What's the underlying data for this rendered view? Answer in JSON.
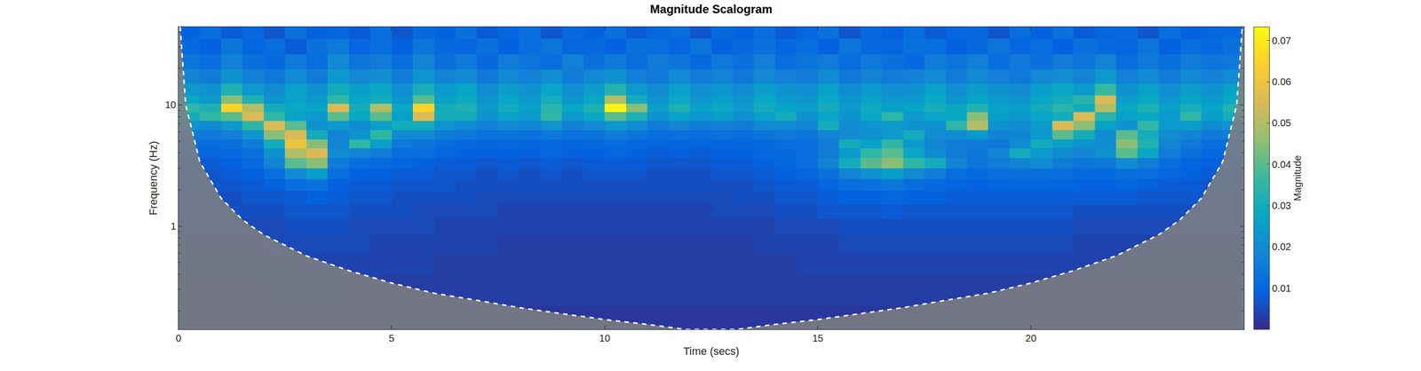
{
  "chart_data": {
    "type": "heatmap",
    "title": "Magnitude Scalogram",
    "x_label": "Time (secs)",
    "y_label": "Frequency (Hz)",
    "colorbar_label": "Magnitude",
    "log": "y",
    "xlim": [
      0,
      25
    ],
    "xticks": [
      0,
      5,
      10,
      15,
      20
    ],
    "ylim": [
      0.141,
      43.9
    ],
    "yticks": [
      1,
      10
    ],
    "zlim": [
      0,
      0.0733
    ],
    "zticks": [
      0.01,
      0.02,
      0.03,
      0.04,
      0.05,
      0.06,
      0.07
    ],
    "x": [
      0.25,
      0.75,
      1.25,
      1.75,
      2.25,
      2.75,
      3.25,
      3.75,
      4.25,
      4.75,
      5.25,
      5.75,
      6.25,
      6.75,
      7.25,
      7.75,
      8.25,
      8.75,
      9.25,
      9.75,
      10.25,
      10.75,
      11.25,
      11.75,
      12.25,
      12.75,
      13.25,
      13.75,
      14.25,
      14.75,
      15.25,
      15.75,
      16.25,
      16.75,
      17.25,
      17.75,
      18.25,
      18.75,
      19.25,
      19.75,
      20.25,
      20.75,
      21.25,
      21.75,
      22.25,
      22.75,
      23.25,
      23.75,
      24.25,
      24.75
    ],
    "y_edges": [
      0.141,
      0.22,
      0.4,
      0.6,
      0.85,
      1.15,
      1.5,
      1.95,
      2.45,
      3.0,
      3.65,
      4.4,
      5.2,
      6.2,
      7.4,
      8.7,
      10.2,
      12,
      15,
      19.5,
      26,
      35,
      43.9
    ],
    "z": [
      [
        0.003,
        0.003,
        0.003,
        0.003,
        0.003,
        0.003,
        0.003,
        0.003,
        0.003,
        0.003,
        0.002,
        0.002,
        0.002,
        0.002,
        0.002,
        0.002,
        0.002,
        0.002,
        0.002,
        0.002,
        0.002,
        0.002,
        0.002,
        0.002,
        0.002,
        0.002,
        0.002,
        0.002,
        0.002,
        0.002,
        0.002,
        0.002,
        0.002,
        0.002,
        0.002,
        0.002,
        0.002,
        0.002,
        0.002,
        0.002,
        0.003,
        0.003,
        0.003,
        0.003,
        0.003,
        0.003,
        0.003,
        0.003,
        0.003,
        0.003
      ],
      [
        0.003,
        0.003,
        0.003,
        0.003,
        0.004,
        0.004,
        0.004,
        0.004,
        0.003,
        0.003,
        0.003,
        0.003,
        0.003,
        0.003,
        0.003,
        0.003,
        0.003,
        0.003,
        0.003,
        0.003,
        0.003,
        0.003,
        0.003,
        0.003,
        0.003,
        0.003,
        0.003,
        0.003,
        0.003,
        0.003,
        0.003,
        0.003,
        0.003,
        0.003,
        0.003,
        0.003,
        0.003,
        0.003,
        0.003,
        0.003,
        0.003,
        0.003,
        0.003,
        0.003,
        0.003,
        0.003,
        0.003,
        0.003,
        0.003,
        0.003
      ],
      [
        0.004,
        0.004,
        0.004,
        0.004,
        0.004,
        0.004,
        0.004,
        0.004,
        0.004,
        0.004,
        0.004,
        0.004,
        0.003,
        0.003,
        0.003,
        0.003,
        0.003,
        0.003,
        0.003,
        0.003,
        0.003,
        0.003,
        0.003,
        0.003,
        0.003,
        0.003,
        0.003,
        0.003,
        0.003,
        0.004,
        0.004,
        0.004,
        0.004,
        0.004,
        0.004,
        0.004,
        0.004,
        0.004,
        0.004,
        0.004,
        0.004,
        0.004,
        0.004,
        0.004,
        0.004,
        0.004,
        0.004,
        0.004,
        0.004,
        0.004
      ],
      [
        0.004,
        0.004,
        0.004,
        0.004,
        0.005,
        0.005,
        0.005,
        0.005,
        0.005,
        0.004,
        0.004,
        0.004,
        0.004,
        0.004,
        0.004,
        0.003,
        0.003,
        0.003,
        0.003,
        0.003,
        0.003,
        0.003,
        0.003,
        0.003,
        0.003,
        0.003,
        0.003,
        0.004,
        0.004,
        0.004,
        0.004,
        0.005,
        0.005,
        0.005,
        0.005,
        0.005,
        0.005,
        0.005,
        0.005,
        0.005,
        0.005,
        0.005,
        0.004,
        0.004,
        0.004,
        0.004,
        0.004,
        0.004,
        0.004,
        0.004
      ],
      [
        0.005,
        0.005,
        0.005,
        0.005,
        0.005,
        0.006,
        0.006,
        0.006,
        0.005,
        0.005,
        0.005,
        0.005,
        0.004,
        0.004,
        0.004,
        0.004,
        0.004,
        0.004,
        0.004,
        0.004,
        0.004,
        0.004,
        0.004,
        0.004,
        0.004,
        0.004,
        0.004,
        0.004,
        0.005,
        0.005,
        0.005,
        0.006,
        0.006,
        0.006,
        0.006,
        0.006,
        0.006,
        0.006,
        0.006,
        0.006,
        0.006,
        0.006,
        0.005,
        0.005,
        0.005,
        0.005,
        0.005,
        0.005,
        0.005,
        0.005
      ],
      [
        0.005,
        0.005,
        0.006,
        0.006,
        0.006,
        0.007,
        0.007,
        0.007,
        0.006,
        0.006,
        0.006,
        0.005,
        0.005,
        0.005,
        0.005,
        0.004,
        0.004,
        0.004,
        0.004,
        0.004,
        0.004,
        0.004,
        0.004,
        0.004,
        0.004,
        0.005,
        0.005,
        0.005,
        0.006,
        0.006,
        0.007,
        0.007,
        0.007,
        0.008,
        0.007,
        0.007,
        0.007,
        0.007,
        0.007,
        0.007,
        0.007,
        0.007,
        0.006,
        0.006,
        0.006,
        0.006,
        0.006,
        0.006,
        0.005,
        0.005
      ],
      [
        0.006,
        0.006,
        0.006,
        0.007,
        0.007,
        0.008,
        0.009,
        0.008,
        0.007,
        0.007,
        0.006,
        0.006,
        0.006,
        0.006,
        0.005,
        0.005,
        0.005,
        0.005,
        0.005,
        0.005,
        0.005,
        0.005,
        0.005,
        0.005,
        0.005,
        0.005,
        0.006,
        0.006,
        0.007,
        0.007,
        0.008,
        0.009,
        0.009,
        0.01,
        0.009,
        0.009,
        0.008,
        0.008,
        0.008,
        0.008,
        0.008,
        0.008,
        0.008,
        0.008,
        0.008,
        0.007,
        0.007,
        0.007,
        0.006,
        0.006
      ],
      [
        0.007,
        0.007,
        0.007,
        0.008,
        0.009,
        0.012,
        0.013,
        0.009,
        0.008,
        0.008,
        0.007,
        0.007,
        0.007,
        0.006,
        0.006,
        0.006,
        0.006,
        0.006,
        0.006,
        0.006,
        0.006,
        0.006,
        0.006,
        0.006,
        0.006,
        0.006,
        0.006,
        0.007,
        0.008,
        0.008,
        0.01,
        0.012,
        0.013,
        0.014,
        0.012,
        0.011,
        0.01,
        0.009,
        0.01,
        0.01,
        0.01,
        0.01,
        0.009,
        0.009,
        0.01,
        0.009,
        0.008,
        0.008,
        0.007,
        0.007
      ],
      [
        0.007,
        0.007,
        0.008,
        0.009,
        0.012,
        0.02,
        0.025,
        0.012,
        0.009,
        0.009,
        0.008,
        0.008,
        0.007,
        0.007,
        0.006,
        0.007,
        0.006,
        0.007,
        0.006,
        0.007,
        0.007,
        0.007,
        0.006,
        0.006,
        0.006,
        0.007,
        0.007,
        0.008,
        0.009,
        0.01,
        0.013,
        0.018,
        0.022,
        0.025,
        0.02,
        0.016,
        0.012,
        0.011,
        0.012,
        0.013,
        0.013,
        0.012,
        0.011,
        0.011,
        0.013,
        0.012,
        0.01,
        0.009,
        0.008,
        0.007
      ],
      [
        0.008,
        0.008,
        0.009,
        0.011,
        0.018,
        0.04,
        0.045,
        0.016,
        0.012,
        0.011,
        0.01,
        0.009,
        0.008,
        0.008,
        0.007,
        0.008,
        0.007,
        0.008,
        0.007,
        0.008,
        0.008,
        0.008,
        0.007,
        0.007,
        0.007,
        0.008,
        0.008,
        0.009,
        0.01,
        0.012,
        0.018,
        0.03,
        0.04,
        0.045,
        0.035,
        0.03,
        0.018,
        0.014,
        0.016,
        0.018,
        0.02,
        0.016,
        0.014,
        0.015,
        0.02,
        0.016,
        0.012,
        0.01,
        0.009,
        0.008
      ],
      [
        0.01,
        0.01,
        0.011,
        0.013,
        0.022,
        0.05,
        0.055,
        0.02,
        0.018,
        0.016,
        0.012,
        0.012,
        0.01,
        0.009,
        0.009,
        0.009,
        0.009,
        0.01,
        0.009,
        0.009,
        0.01,
        0.009,
        0.008,
        0.009,
        0.008,
        0.009,
        0.009,
        0.01,
        0.011,
        0.012,
        0.016,
        0.024,
        0.035,
        0.04,
        0.028,
        0.02,
        0.016,
        0.014,
        0.018,
        0.03,
        0.024,
        0.02,
        0.018,
        0.022,
        0.04,
        0.028,
        0.016,
        0.013,
        0.011,
        0.01
      ],
      [
        0.012,
        0.012,
        0.013,
        0.016,
        0.03,
        0.06,
        0.045,
        0.018,
        0.035,
        0.025,
        0.015,
        0.014,
        0.012,
        0.011,
        0.01,
        0.011,
        0.01,
        0.011,
        0.01,
        0.011,
        0.012,
        0.011,
        0.01,
        0.01,
        0.01,
        0.01,
        0.01,
        0.011,
        0.012,
        0.012,
        0.016,
        0.03,
        0.026,
        0.035,
        0.024,
        0.018,
        0.016,
        0.016,
        0.015,
        0.02,
        0.03,
        0.025,
        0.022,
        0.02,
        0.045,
        0.032,
        0.018,
        0.015,
        0.012,
        0.012
      ],
      [
        0.016,
        0.015,
        0.017,
        0.022,
        0.045,
        0.055,
        0.03,
        0.018,
        0.022,
        0.035,
        0.02,
        0.02,
        0.016,
        0.015,
        0.013,
        0.014,
        0.013,
        0.015,
        0.013,
        0.014,
        0.016,
        0.014,
        0.012,
        0.013,
        0.012,
        0.013,
        0.012,
        0.014,
        0.015,
        0.014,
        0.018,
        0.02,
        0.022,
        0.024,
        0.03,
        0.02,
        0.02,
        0.024,
        0.018,
        0.018,
        0.024,
        0.04,
        0.03,
        0.02,
        0.04,
        0.03,
        0.02,
        0.018,
        0.015,
        0.016
      ],
      [
        0.022,
        0.02,
        0.024,
        0.035,
        0.055,
        0.04,
        0.022,
        0.024,
        0.02,
        0.026,
        0.03,
        0.03,
        0.022,
        0.02,
        0.017,
        0.019,
        0.018,
        0.022,
        0.017,
        0.019,
        0.024,
        0.02,
        0.016,
        0.018,
        0.016,
        0.017,
        0.016,
        0.019,
        0.02,
        0.018,
        0.03,
        0.02,
        0.022,
        0.024,
        0.022,
        0.021,
        0.035,
        0.05,
        0.022,
        0.02,
        0.024,
        0.055,
        0.045,
        0.026,
        0.022,
        0.035,
        0.024,
        0.025,
        0.02,
        0.022
      ],
      [
        0.03,
        0.035,
        0.04,
        0.055,
        0.035,
        0.026,
        0.024,
        0.04,
        0.028,
        0.04,
        0.026,
        0.055,
        0.03,
        0.03,
        0.022,
        0.026,
        0.024,
        0.035,
        0.024,
        0.028,
        0.04,
        0.032,
        0.022,
        0.026,
        0.023,
        0.025,
        0.021,
        0.026,
        0.03,
        0.022,
        0.027,
        0.022,
        0.028,
        0.035,
        0.024,
        0.027,
        0.028,
        0.045,
        0.025,
        0.023,
        0.027,
        0.03,
        0.055,
        0.034,
        0.026,
        0.028,
        0.024,
        0.035,
        0.025,
        0.03
      ],
      [
        0.035,
        0.032,
        0.065,
        0.05,
        0.03,
        0.028,
        0.027,
        0.055,
        0.03,
        0.05,
        0.028,
        0.065,
        0.03,
        0.032,
        0.024,
        0.03,
        0.026,
        0.034,
        0.027,
        0.032,
        0.072,
        0.045,
        0.025,
        0.032,
        0.026,
        0.028,
        0.024,
        0.03,
        0.027,
        0.025,
        0.03,
        0.024,
        0.029,
        0.026,
        0.027,
        0.031,
        0.028,
        0.033,
        0.026,
        0.025,
        0.03,
        0.034,
        0.03,
        0.05,
        0.028,
        0.032,
        0.026,
        0.031,
        0.027,
        0.033
      ],
      [
        0.028,
        0.024,
        0.045,
        0.032,
        0.022,
        0.026,
        0.024,
        0.035,
        0.027,
        0.03,
        0.023,
        0.04,
        0.026,
        0.029,
        0.022,
        0.027,
        0.024,
        0.03,
        0.023,
        0.028,
        0.05,
        0.03,
        0.022,
        0.028,
        0.023,
        0.025,
        0.022,
        0.028,
        0.024,
        0.023,
        0.028,
        0.022,
        0.026,
        0.023,
        0.024,
        0.028,
        0.023,
        0.027,
        0.024,
        0.022,
        0.027,
        0.03,
        0.034,
        0.055,
        0.025,
        0.028,
        0.023,
        0.027,
        0.024,
        0.028
      ],
      [
        0.024,
        0.022,
        0.032,
        0.024,
        0.02,
        0.026,
        0.022,
        0.03,
        0.025,
        0.028,
        0.021,
        0.031,
        0.024,
        0.027,
        0.02,
        0.025,
        0.022,
        0.027,
        0.021,
        0.025,
        0.033,
        0.024,
        0.02,
        0.026,
        0.021,
        0.023,
        0.02,
        0.025,
        0.022,
        0.021,
        0.026,
        0.02,
        0.024,
        0.021,
        0.022,
        0.026,
        0.021,
        0.025,
        0.022,
        0.02,
        0.025,
        0.028,
        0.024,
        0.036,
        0.022,
        0.026,
        0.021,
        0.025,
        0.022,
        0.026
      ],
      [
        0.018,
        0.016,
        0.022,
        0.017,
        0.015,
        0.02,
        0.016,
        0.024,
        0.019,
        0.021,
        0.016,
        0.023,
        0.018,
        0.02,
        0.015,
        0.019,
        0.017,
        0.021,
        0.016,
        0.019,
        0.022,
        0.017,
        0.015,
        0.02,
        0.016,
        0.018,
        0.015,
        0.019,
        0.017,
        0.016,
        0.02,
        0.015,
        0.018,
        0.016,
        0.017,
        0.02,
        0.016,
        0.019,
        0.017,
        0.015,
        0.019,
        0.021,
        0.018,
        0.024,
        0.017,
        0.02,
        0.016,
        0.019,
        0.017,
        0.02
      ],
      [
        0.014,
        0.012,
        0.017,
        0.013,
        0.011,
        0.015,
        0.012,
        0.019,
        0.014,
        0.016,
        0.012,
        0.018,
        0.013,
        0.015,
        0.011,
        0.016,
        0.014,
        0.012,
        0.017,
        0.013,
        0.015,
        0.012,
        0.016,
        0.014,
        0.011,
        0.015,
        0.013,
        0.017,
        0.012,
        0.014,
        0.016,
        0.012,
        0.015,
        0.013,
        0.011,
        0.016,
        0.014,
        0.017,
        0.012,
        0.015,
        0.013,
        0.016,
        0.014,
        0.018,
        0.012,
        0.015,
        0.013,
        0.016,
        0.014,
        0.015
      ],
      [
        0.011,
        0.009,
        0.014,
        0.01,
        0.012,
        0.008,
        0.013,
        0.015,
        0.01,
        0.012,
        0.009,
        0.014,
        0.011,
        0.01,
        0.013,
        0.009,
        0.012,
        0.014,
        0.01,
        0.011,
        0.009,
        0.013,
        0.012,
        0.01,
        0.014,
        0.009,
        0.011,
        0.013,
        0.01,
        0.012,
        0.009,
        0.014,
        0.011,
        0.01,
        0.013,
        0.012,
        0.009,
        0.011,
        0.014,
        0.01,
        0.012,
        0.009,
        0.013,
        0.011,
        0.01,
        0.014,
        0.009,
        0.012,
        0.011,
        0.013
      ],
      [
        0.009,
        0.012,
        0.008,
        0.011,
        0.007,
        0.013,
        0.009,
        0.01,
        0.008,
        0.012,
        0.007,
        0.011,
        0.009,
        0.013,
        0.008,
        0.01,
        0.012,
        0.007,
        0.011,
        0.009,
        0.013,
        0.008,
        0.01,
        0.012,
        0.007,
        0.011,
        0.009,
        0.012,
        0.008,
        0.01,
        0.013,
        0.007,
        0.011,
        0.009,
        0.012,
        0.008,
        0.01,
        0.011,
        0.007,
        0.012,
        0.009,
        0.013,
        0.008,
        0.01,
        0.011,
        0.007,
        0.012,
        0.009,
        0.01,
        0.011
      ]
    ],
    "coi": {
      "x": [
        0.04,
        0.17,
        0.5,
        1,
        1.5,
        2,
        3,
        4,
        5,
        6,
        7,
        8,
        9,
        10,
        11,
        11.9,
        13.1,
        14,
        15,
        16,
        17,
        18,
        19,
        20,
        21,
        22,
        23,
        23.5,
        24,
        24.5,
        24.83,
        24.96
      ],
      "y": [
        43.9,
        10,
        3.4,
        1.7,
        1.13,
        0.85,
        0.57,
        0.43,
        0.34,
        0.28,
        0.245,
        0.213,
        0.19,
        0.17,
        0.155,
        0.141,
        0.141,
        0.155,
        0.17,
        0.19,
        0.213,
        0.245,
        0.28,
        0.34,
        0.43,
        0.57,
        0.85,
        1.13,
        1.7,
        3.4,
        10,
        43.9
      ]
    }
  }
}
